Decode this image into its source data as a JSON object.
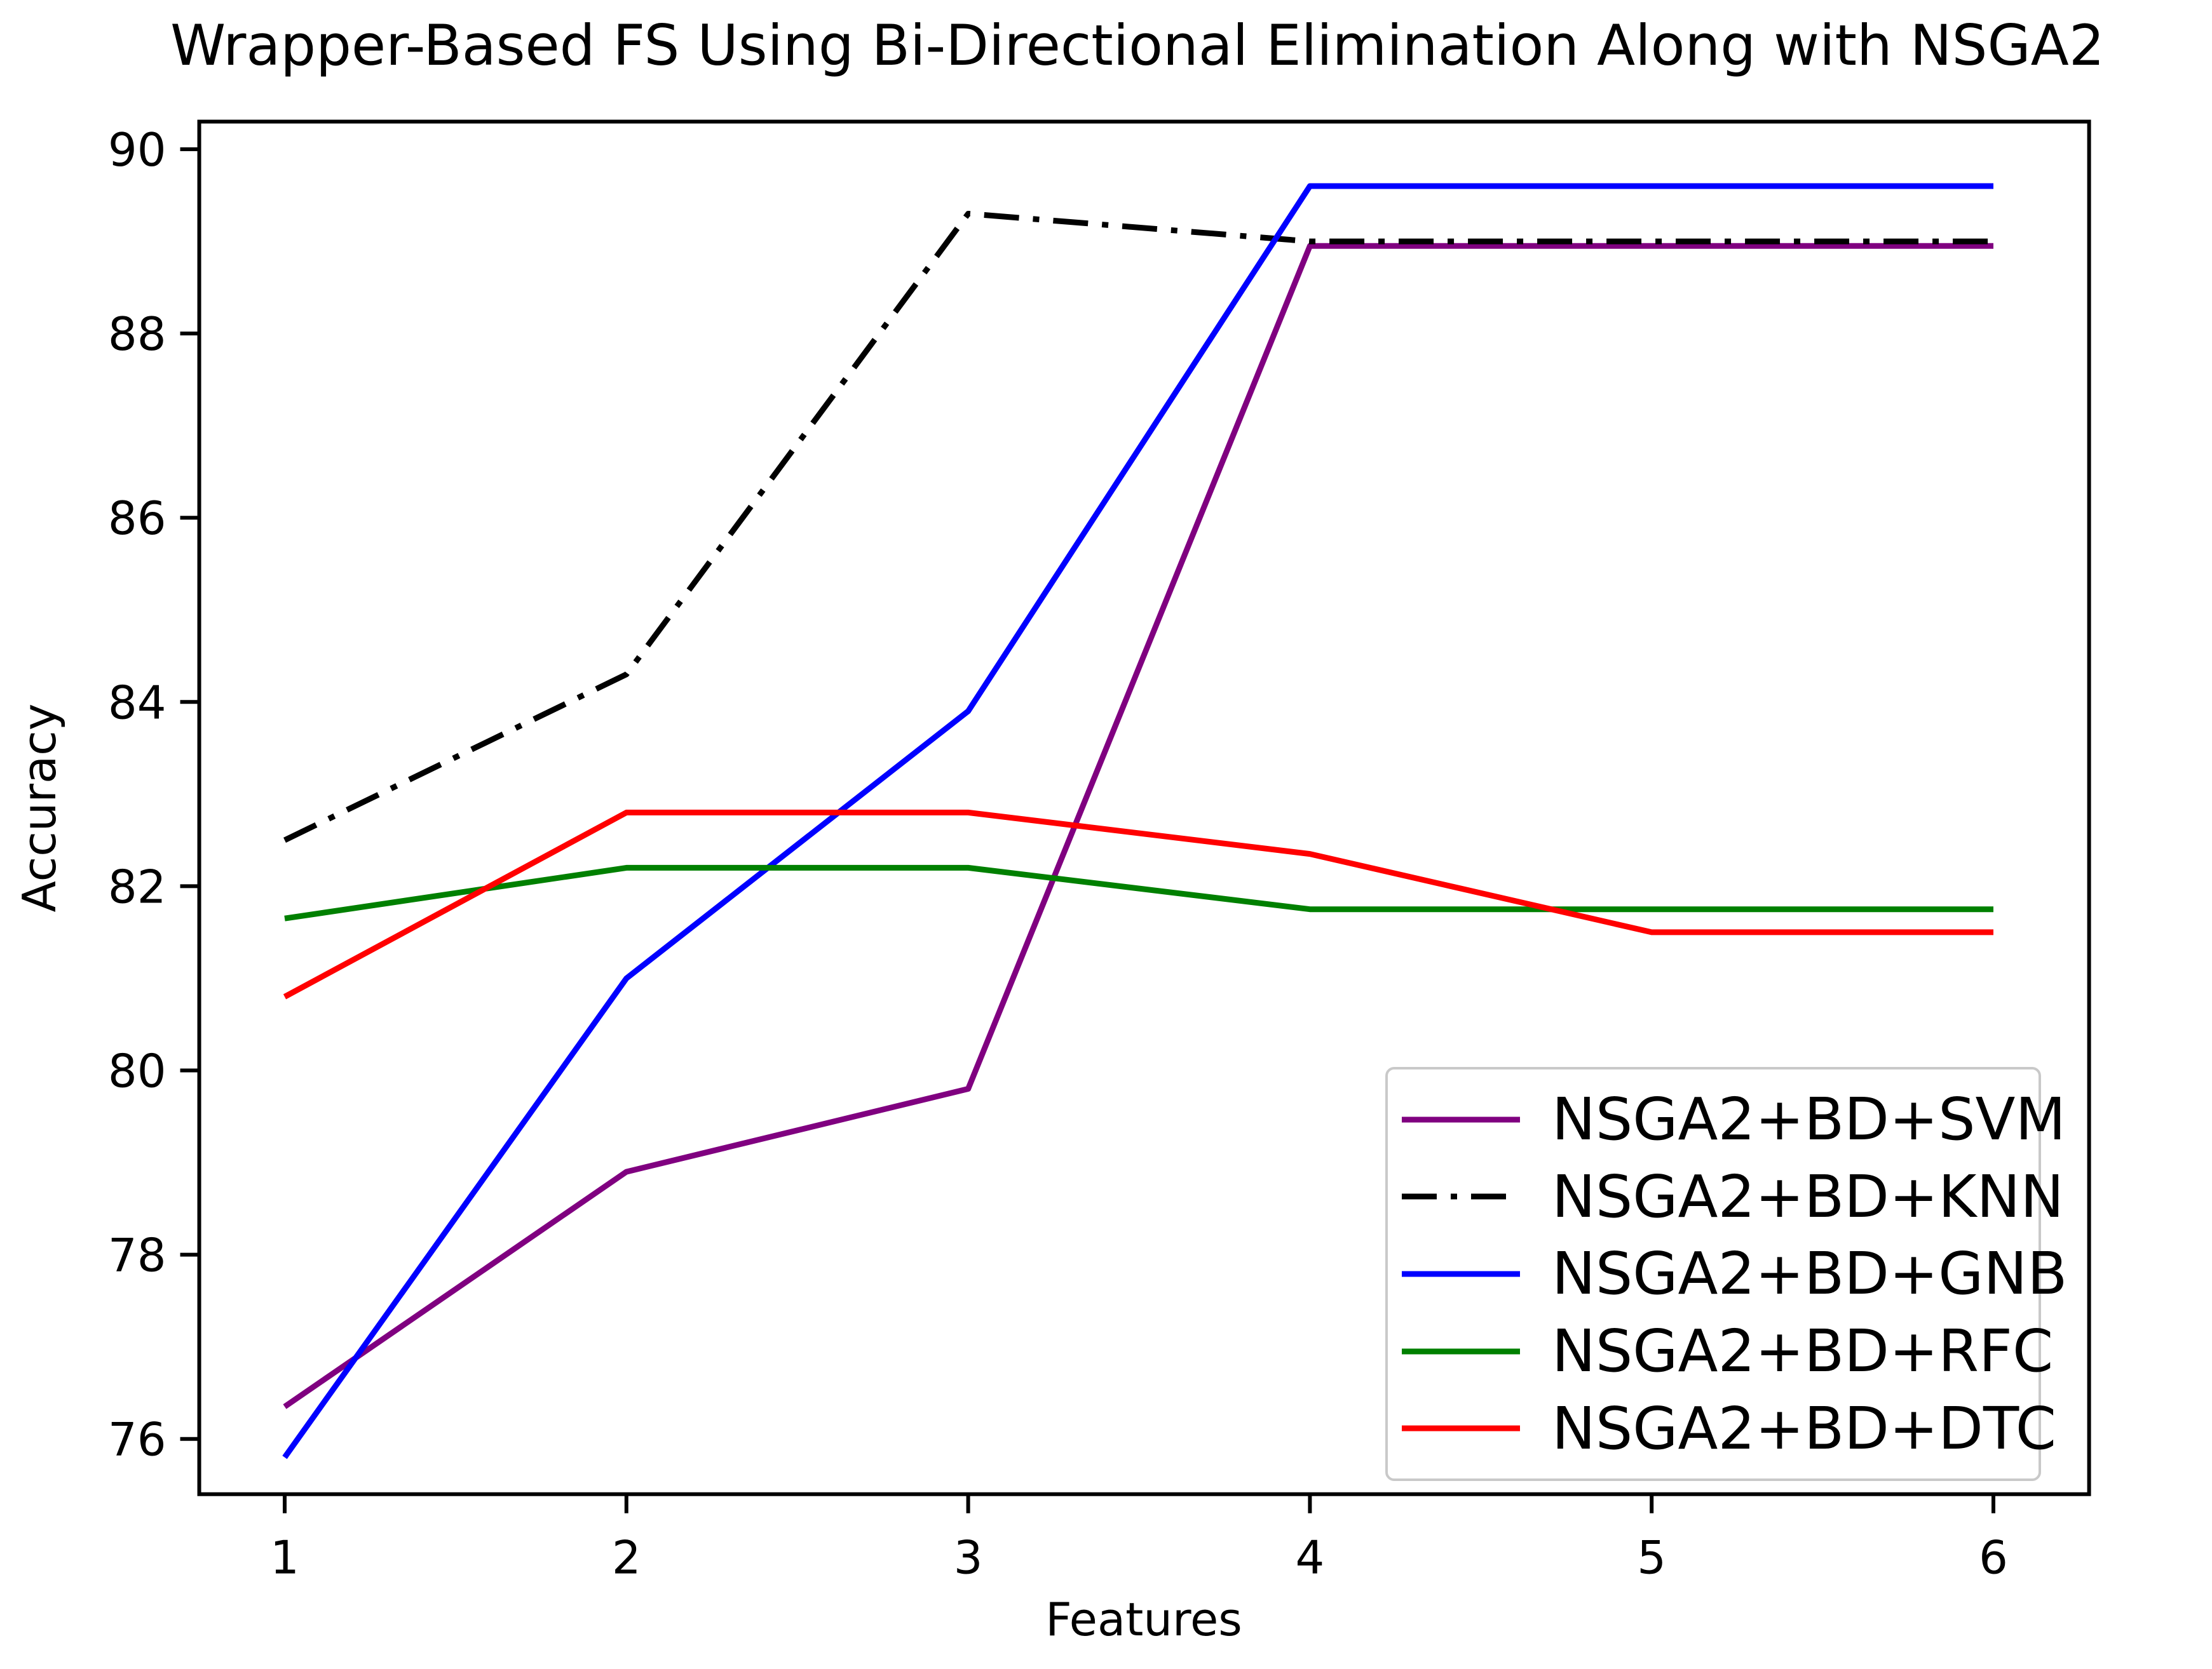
{
  "figure": {
    "title": "Wrapper-Based FS Using Bi-Directional Elimination Along with NSGA2"
  },
  "chart_data": {
    "type": "line",
    "title": "Wrapper-Based FS Using Bi-Directional Elimination Along with NSGA2",
    "xlabel": "Features",
    "ylabel": "Accuracy",
    "grid": false,
    "legend_position": "lower right",
    "x": [
      1,
      2,
      3,
      4,
      5,
      6
    ],
    "xticks": [
      1,
      2,
      3,
      4,
      5,
      6
    ],
    "yticks": [
      76,
      78,
      80,
      82,
      84,
      86,
      88,
      90
    ],
    "xlim": [
      0.75,
      6.28
    ],
    "ylim": [
      75.4,
      90.3
    ],
    "series": [
      {
        "name": "NSGA2+BD+SVM",
        "color": "#800080",
        "style": "solid",
        "values": [
          76.35,
          78.9,
          79.8,
          88.95,
          88.95,
          88.95
        ]
      },
      {
        "name": "NSGA2+BD+KNN",
        "color": "#000000",
        "style": "dashdot",
        "values": [
          82.5,
          84.3,
          89.3,
          89.0,
          89.0,
          89.0
        ]
      },
      {
        "name": "NSGA2+BD+GNB",
        "color": "#0000ff",
        "style": "solid",
        "values": [
          75.8,
          81.0,
          83.9,
          89.6,
          89.6,
          89.6
        ]
      },
      {
        "name": "NSGA2+BD+RFC",
        "color": "#008000",
        "style": "solid",
        "values": [
          81.65,
          82.2,
          82.2,
          81.75,
          81.75,
          81.75
        ]
      },
      {
        "name": "NSGA2+BD+DTC",
        "color": "#ff0000",
        "style": "solid",
        "values": [
          80.8,
          82.8,
          82.8,
          82.35,
          81.5,
          81.5
        ]
      }
    ]
  }
}
